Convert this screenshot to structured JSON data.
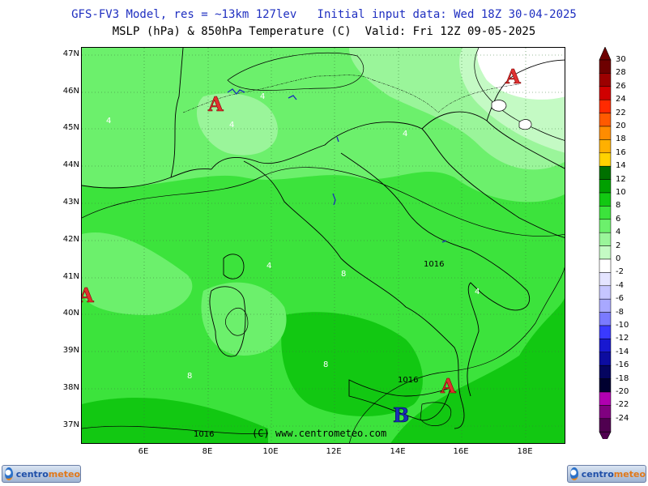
{
  "header": {
    "line1": "GFS-FV3 Model, res = ~13km 127lev   Initial input data: Wed 18Z 30-04-2025",
    "line2": "MSLP (hPa) & 850hPa Temperature (C)  Valid: Fri 12Z 09-05-2025"
  },
  "axes": {
    "latitudes": [
      "47N",
      "46N",
      "45N",
      "44N",
      "43N",
      "42N",
      "41N",
      "40N",
      "39N",
      "38N",
      "37N"
    ],
    "longitudes": [
      "6E",
      "8E",
      "10E",
      "12E",
      "14E",
      "16E",
      "18E"
    ]
  },
  "colorbar": {
    "labels": [
      "30",
      "28",
      "26",
      "24",
      "22",
      "20",
      "18",
      "16",
      "14",
      "12",
      "10",
      "8",
      "6",
      "4",
      "2",
      "0",
      "-2",
      "-4",
      "-6",
      "-8",
      "-10",
      "-12",
      "-14",
      "-16",
      "-18",
      "-20",
      "-22",
      "-24"
    ],
    "colors": [
      "#6e0000",
      "#9c0000",
      "#d00000",
      "#ff2a00",
      "#ff5a00",
      "#ff8c00",
      "#ffb000",
      "#ffd200",
      "#007000",
      "#00a000",
      "#12c812",
      "#3ce33c",
      "#6cf06c",
      "#9af59a",
      "#c4fac4",
      "#ffffff",
      "#e4e4ff",
      "#c6c6ff",
      "#a8a8ff",
      "#7a7aff",
      "#3a3aff",
      "#1818d0",
      "#0c0ca0",
      "#050560",
      "#000030",
      "#b000b0",
      "#800080",
      "#500050"
    ]
  },
  "map": {
    "pressure_systems": [
      {
        "symbol": "A",
        "kind": "high"
      },
      {
        "symbol": "A",
        "kind": "high"
      },
      {
        "symbol": "A",
        "kind": "high"
      },
      {
        "symbol": "A",
        "kind": "high"
      },
      {
        "symbol": "B",
        "kind": "low"
      }
    ],
    "isobar_labels": [
      "1016",
      "1016",
      "1016"
    ],
    "temperature_labels": [
      "4",
      "4",
      "4",
      "4",
      "4",
      "4",
      "8",
      "8",
      "8"
    ],
    "copyright": "(C) www.centrometeo.com"
  },
  "logos": {
    "left_part1": "centro",
    "left_part2": "meteo",
    "right_part1": "centro",
    "right_part2": "meteo"
  }
}
